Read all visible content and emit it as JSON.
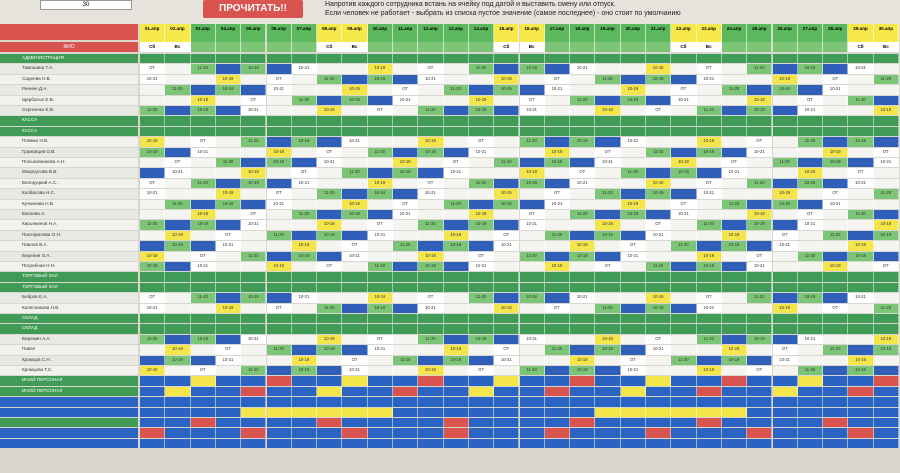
{
  "top": {
    "cell_value": "30",
    "read_button": "ПРОЧИТАТЬ!!",
    "instruction_1": "Напротив каждого сотрудника встань на ячейку под датой и выставить смену или отпуск.",
    "instruction_2": "Если человек не работает - выбрать из списка пустое значение (самое последнее) - оно стоит по умолчанию"
  },
  "labels": {
    "fio": "ФИО"
  },
  "dates": [
    "01.апр",
    "02.апр",
    "03.апр",
    "04.апр",
    "05.апр",
    "06.апр",
    "07.апр",
    "08.апр",
    "09.апр",
    "10.апр",
    "11.апр",
    "12.апр",
    "13.апр",
    "14.апр",
    "15.апр",
    "16.апр",
    "17.апр",
    "18.апр",
    "19.апр",
    "20.апр",
    "21.апр",
    "22.апр",
    "23.апр",
    "24.апр",
    "25.апр",
    "26.апр",
    "27.апр",
    "28.апр",
    "29.апр",
    "30.апр"
  ],
  "weekdays": [
    "Сб",
    "Вс",
    "",
    "",
    "",
    "",
    "",
    "Сб",
    "Вс",
    "",
    "",
    "",
    "",
    "",
    "Сб",
    "Вс",
    "",
    "",
    "",
    "",
    "",
    "Сб",
    "Вс",
    "",
    "",
    "",
    "",
    "",
    "Сб",
    "Вс"
  ],
  "weekend_days": [
    0,
    1,
    7,
    8,
    14,
    15,
    21,
    22,
    28,
    29
  ],
  "rows": [
    {
      "section": true,
      "name": "АДМИНИСТРАЦИЯ"
    },
    {
      "name": "Тимошина Т.А."
    },
    {
      "name": "Садеева Н.В."
    },
    {
      "name": "Реннен Д.А."
    },
    {
      "name": "Щербатых Е.В."
    },
    {
      "name": "Сергеенко Е.В."
    },
    {
      "section": true,
      "name": "КАССА"
    },
    {
      "section": true,
      "name": "КАССА"
    },
    {
      "name": "Плямко Н.В."
    },
    {
      "name": "Грамовцев О.В."
    },
    {
      "name": "Полыковникова А.Н."
    },
    {
      "name": "Мокроусова В.В."
    },
    {
      "name": "Белоруцкий А.С."
    },
    {
      "name": "Колбасова Н.С."
    },
    {
      "name": "Кучкинова Н.В."
    },
    {
      "name": "Евсеева А."
    },
    {
      "name": "Кирьянинов Н.А."
    },
    {
      "name": "Пантерилова О.Н."
    },
    {
      "name": "Павлов В.А."
    },
    {
      "name": "Берелин О.А."
    },
    {
      "name": "Погребная Н.Н."
    },
    {
      "section": true,
      "name": "ТОРГОВЫЙ ЗАЛ"
    },
    {
      "section": true,
      "name": "ТОРГОВЫЙ ЗАЛ"
    },
    {
      "name": "Бобров Е.А."
    },
    {
      "name": "Колесникова Н.В."
    },
    {
      "section": true,
      "name": "СКЛАД"
    },
    {
      "section": true,
      "name": "СКЛАД"
    },
    {
      "name": "Бережин А.А."
    },
    {
      "name": "Павел"
    },
    {
      "name": "Кромцов С.Н."
    },
    {
      "name": "Кромцова Т.С."
    },
    {
      "section": true,
      "name": "ИНОЙ ПЕРСОНАЛ"
    },
    {
      "section": true,
      "name": "ИНОЙ ПЕРСОНАЛ"
    }
  ],
  "shift_values": [
    "10-19",
    "11-20",
    "10-21",
    "09-18",
    "11-18",
    "ОТ"
  ],
  "colors": {
    "header_yellow": "#f7e94a",
    "header_green": "#5cb85c",
    "row_green": "#7cc576",
    "row_blue": "#2f5fb8",
    "section": "#3f9b56",
    "cell_yellow": "#f4e64a",
    "cell_red": "#d9534f",
    "bottom_blue": "#2a63c2"
  }
}
